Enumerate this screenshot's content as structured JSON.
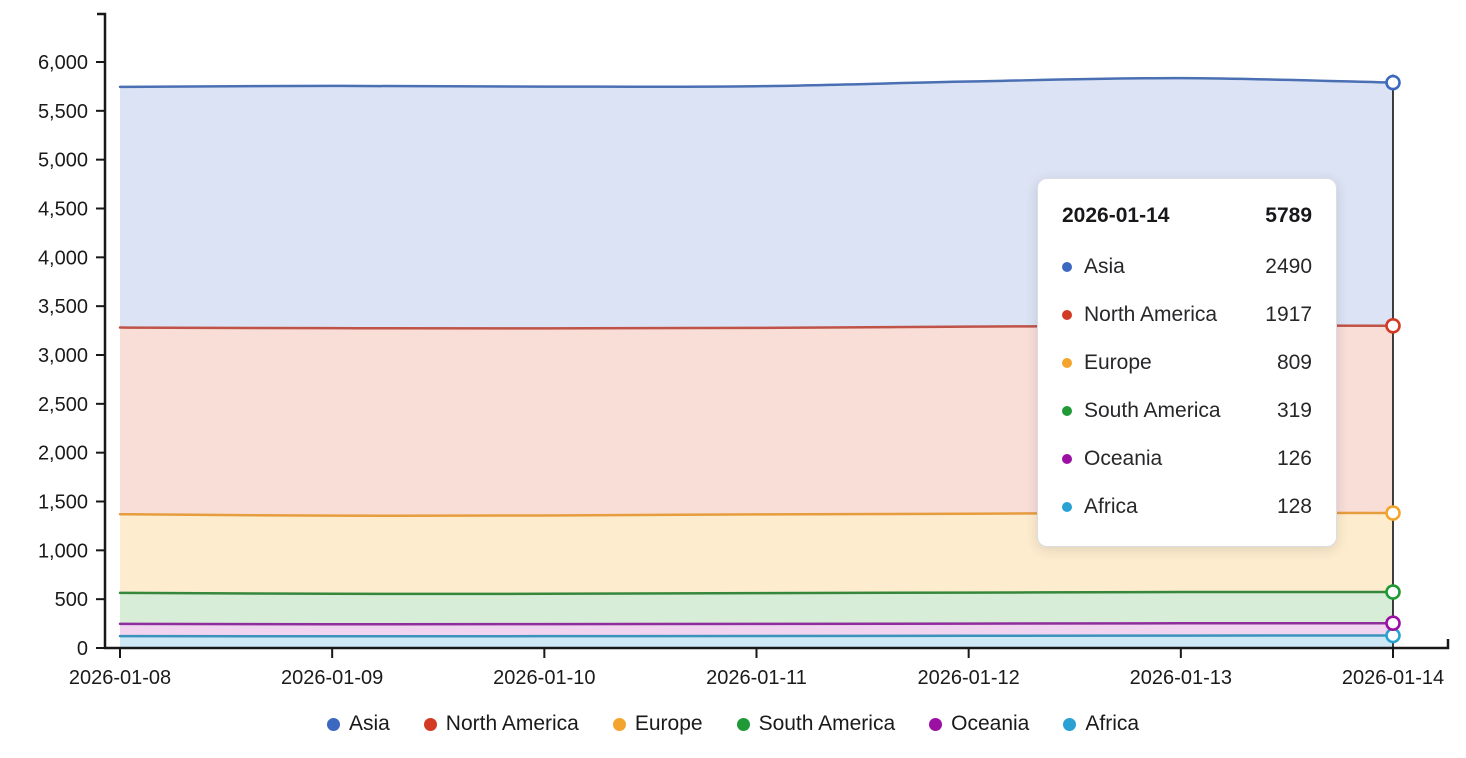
{
  "chart_data": {
    "type": "area",
    "stacked": true,
    "title": "",
    "xlabel": "",
    "ylabel": "",
    "x": [
      "2026-01-08",
      "2026-01-09",
      "2026-01-10",
      "2026-01-11",
      "2026-01-12",
      "2026-01-13",
      "2026-01-14"
    ],
    "series": [
      {
        "name": "Asia",
        "values": [
          2464,
          2480,
          2476,
          2474,
          2510,
          2534,
          2490
        ],
        "line_color": "#4a6fb3",
        "fill_color": "#dbe3f4",
        "dot_color": "#3c68c0"
      },
      {
        "name": "North America",
        "values": [
          1911,
          1920,
          1915,
          1910,
          1915,
          1918,
          1917
        ],
        "line_color": "#bf5348",
        "fill_color": "#f9ddd7",
        "dot_color": "#d23a24"
      },
      {
        "name": "Europe",
        "values": [
          805,
          800,
          802,
          806,
          808,
          810,
          809
        ],
        "line_color": "#e69d3e",
        "fill_color": "#fdecce",
        "dot_color": "#f3a42c"
      },
      {
        "name": "South America",
        "values": [
          318,
          312,
          310,
          315,
          317,
          320,
          319
        ],
        "line_color": "#36873c",
        "fill_color": "#d7edd7",
        "dot_color": "#1f9a37"
      },
      {
        "name": "Oceania",
        "values": [
          125,
          123,
          124,
          124,
          125,
          126,
          126
        ],
        "line_color": "#8e2d9c",
        "fill_color": "#f0d4f0",
        "dot_color": "#9b10a3"
      },
      {
        "name": "Africa",
        "values": [
          122,
          120,
          121,
          123,
          125,
          127,
          128
        ],
        "line_color": "#3b93bd",
        "fill_color": "#cfe8f6",
        "dot_color": "#29a2d3"
      }
    ],
    "stack_order": "last series at bottom (Africa), first on top (Asia)",
    "ylim": [
      0,
      6000
    ],
    "ytick_step": 500,
    "ytick_labels": [
      "0",
      "500",
      "1,000",
      "1,500",
      "2,000",
      "2,500",
      "3,000",
      "3,500",
      "4,000",
      "4,500",
      "5,000",
      "5,500",
      "6,000"
    ],
    "grid": false,
    "legend_position": "bottom",
    "highlight_index": 6,
    "axis_color": "#18181b"
  },
  "tooltip": {
    "date": "2026-01-14",
    "total": "5789",
    "rows": [
      {
        "label": "Asia",
        "value": "2490"
      },
      {
        "label": "North America",
        "value": "1917"
      },
      {
        "label": "Europe",
        "value": "809"
      },
      {
        "label": "South America",
        "value": "319"
      },
      {
        "label": "Oceania",
        "value": "126"
      },
      {
        "label": "Africa",
        "value": "128"
      }
    ]
  },
  "legend": {
    "items": [
      "Asia",
      "North America",
      "Europe",
      "South America",
      "Oceania",
      "Africa"
    ]
  }
}
